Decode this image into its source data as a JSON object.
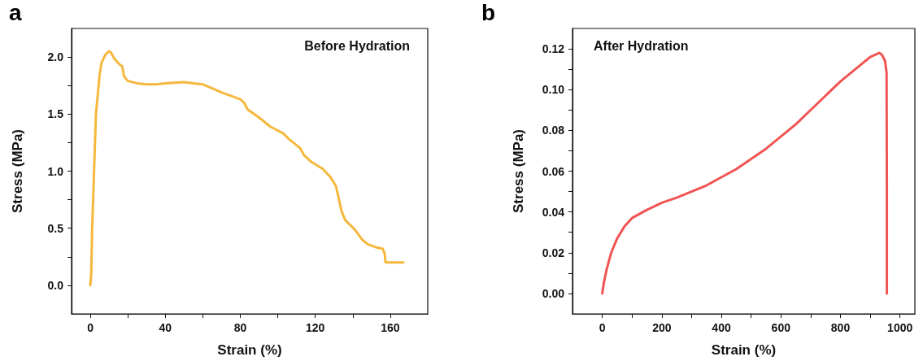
{
  "chart_data": [
    {
      "type": "line",
      "title": "a",
      "xlabel": "Strain (%)",
      "ylabel": "Stress (MPa)",
      "annotations": [
        "Before Hydration"
      ],
      "xlim": [
        -10,
        180
      ],
      "xticks": [
        0,
        {
          "value": 20,
          "label": null
        },
        40,
        {
          "value": 60,
          "label": null
        },
        80,
        {
          "value": 100,
          "label": null
        },
        120,
        {
          "value": 140,
          "label": null
        },
        160
      ],
      "ylim": [
        -0.25,
        2.25
      ],
      "yticks": [
        {
          "value": 0,
          "label": "0.0"
        },
        {
          "value": 0.25,
          "label": null
        },
        0.5,
        {
          "value": 0.75,
          "label": null
        },
        {
          "value": 1,
          "label": "1.0"
        },
        {
          "value": 1.25,
          "label": null
        },
        1.5,
        {
          "value": 1.75,
          "label": null
        },
        {
          "value": 2,
          "label": "2.0"
        }
      ],
      "grid": false,
      "marker": "none",
      "line_style": "solid",
      "series": [
        {
          "color": "#f5b83d",
          "x": [
            0,
            0.5,
            1,
            2,
            3,
            5,
            6,
            8,
            10,
            11,
            13,
            16,
            17,
            18,
            20,
            25,
            30,
            35,
            40,
            50,
            55,
            60,
            63,
            70,
            80,
            82,
            84,
            90,
            96,
            103,
            106,
            112,
            114,
            118,
            124,
            128,
            131,
            132,
            134,
            136,
            141,
            145,
            148,
            153,
            156,
            157,
            157.5,
            167
          ],
          "values": [
            0,
            0.1,
            0.5,
            1.0,
            1.5,
            1.85,
            1.95,
            2.02,
            2.05,
            2.04,
            1.98,
            1.93,
            1.92,
            1.83,
            1.79,
            1.77,
            1.76,
            1.76,
            1.77,
            1.78,
            1.77,
            1.76,
            1.74,
            1.69,
            1.63,
            1.6,
            1.54,
            1.47,
            1.39,
            1.33,
            1.28,
            1.2,
            1.14,
            1.08,
            1.02,
            0.95,
            0.87,
            0.8,
            0.65,
            0.57,
            0.49,
            0.4,
            0.36,
            0.33,
            0.32,
            0.28,
            0.2,
            0.2
          ]
        }
      ]
    },
    {
      "type": "line",
      "title": "b",
      "xlabel": "Strain (%)",
      "ylabel": "Stress (MPa)",
      "annotations": [
        "After Hydration"
      ],
      "xlim": [
        -100,
        1050
      ],
      "xticks": [
        0,
        {
          "value": 100,
          "label": null
        },
        200,
        {
          "value": 300,
          "label": null
        },
        400,
        {
          "value": 500,
          "label": null
        },
        600,
        {
          "value": 700,
          "label": null
        },
        800,
        {
          "value": 900,
          "label": null
        },
        1000
      ],
      "ylim": [
        -0.01,
        0.13
      ],
      "yticks": [
        {
          "value": 0,
          "label": "0.00"
        },
        {
          "value": 0.01,
          "label": null
        },
        0.02,
        {
          "value": 0.03,
          "label": null
        },
        0.04,
        {
          "value": 0.05,
          "label": null
        },
        0.06,
        {
          "value": 0.07,
          "label": null
        },
        0.08,
        {
          "value": 0.09,
          "label": null
        },
        {
          "value": 0.1,
          "label": "0.10"
        },
        {
          "value": 0.11,
          "label": null
        },
        0.12
      ],
      "grid": false,
      "marker": "none",
      "line_style": "solid",
      "series": [
        {
          "color": "#f05454",
          "x": [
            0,
            5,
            15,
            30,
            50,
            75,
            100,
            150,
            200,
            250,
            300,
            350,
            400,
            450,
            500,
            550,
            600,
            650,
            700,
            750,
            800,
            850,
            900,
            930,
            940,
            950,
            955,
            956,
            956
          ],
          "values": [
            0,
            0.005,
            0.012,
            0.02,
            0.027,
            0.033,
            0.037,
            0.041,
            0.0445,
            0.047,
            0.05,
            0.053,
            0.057,
            0.061,
            0.066,
            0.071,
            0.077,
            0.083,
            0.09,
            0.097,
            0.104,
            0.11,
            0.116,
            0.118,
            0.117,
            0.114,
            0.108,
            0.05,
            0
          ]
        }
      ]
    }
  ]
}
